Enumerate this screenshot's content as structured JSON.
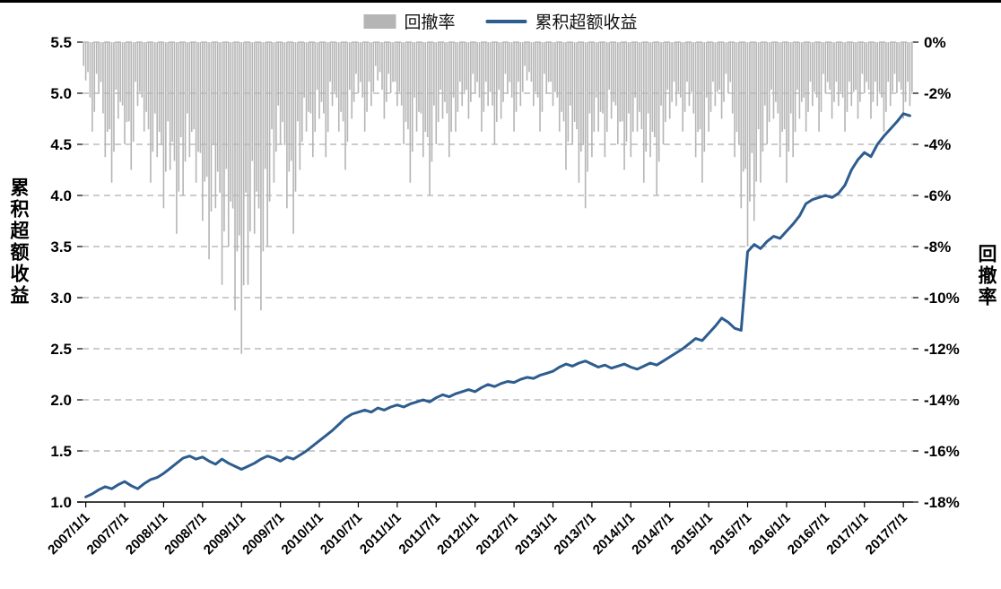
{
  "figure": {
    "background_color": "#ffffff",
    "top_border_color": "#000000",
    "grid_style": "dashed-horizontal",
    "legend_position": "top-center"
  },
  "chart_data": {
    "type": "combo",
    "x_start_month": "2007/1",
    "x_tick_labels": [
      "2007/1/1",
      "2007/7/1",
      "2008/1/1",
      "2008/7/1",
      "2009/1/1",
      "2009/7/1",
      "2010/1/1",
      "2010/7/1",
      "2011/1/1",
      "2011/7/1",
      "2012/1/1",
      "2012/7/1",
      "2013/1/1",
      "2013/7/1",
      "2014/1/1",
      "2014/7/1",
      "2015/1/1",
      "2015/7/1",
      "2016/1/1",
      "2016/7/1",
      "2017/1/1",
      "2017/7/1"
    ],
    "left_axis": {
      "title": "累积超额收益",
      "min": 1.0,
      "max": 5.5,
      "ticks": [
        "5.5",
        "5.0",
        "4.5",
        "4.0",
        "3.5",
        "3.0",
        "2.5",
        "2.0",
        "1.5",
        "1.0"
      ]
    },
    "right_axis": {
      "title": "回撤率",
      "min": -18,
      "max": 0,
      "ticks": [
        "0%",
        "-2%",
        "-4%",
        "-6%",
        "-8%",
        "-10%",
        "-12%",
        "-14%",
        "-16%",
        "-18%"
      ]
    },
    "series": [
      {
        "name": "回撤率",
        "type": "bar",
        "axis": "right",
        "unit": "%",
        "color": "#b5b5b5",
        "values": [
          -1.5,
          -3.5,
          -2,
          -4.5,
          -5.5,
          -3,
          -4,
          -5,
          -2.5,
          -3.5,
          -5.5,
          -4.5,
          -6.5,
          -5,
          -7.5,
          -6,
          -4.5,
          -5.5,
          -7,
          -8.5,
          -6.5,
          -9.5,
          -8,
          -10.5,
          -12.2,
          -9.5,
          -7.5,
          -10.5,
          -8,
          -5.5,
          -4,
          -6.5,
          -7.5,
          -5,
          -3.5,
          -4.5,
          -3,
          -4.5,
          -2.5,
          -3.5,
          -5,
          -3,
          -2,
          -3.5,
          -2.5,
          -1.5,
          -3,
          -2,
          -2.5,
          -4,
          -5.5,
          -3.5,
          -4.5,
          -6,
          -4,
          -3,
          -4.5,
          -3.5,
          -2.5,
          -3,
          -2,
          -3.5,
          -2.5,
          -4,
          -3,
          -2,
          -3.5,
          -2.5,
          -1.5,
          -2.5,
          -3.5,
          -2,
          -2.5,
          -3.5,
          -5,
          -4,
          -5.5,
          -6.5,
          -4.5,
          -3.5,
          -4.5,
          -3,
          -4,
          -5,
          -4.5,
          -3.5,
          -5.5,
          -4.5,
          -6,
          -4,
          -3,
          -2.5,
          -3.5,
          -2.5,
          -4.5,
          -5.5,
          -3.5,
          -2.5,
          -3,
          -2,
          -4.5,
          -6.5,
          -8,
          -7,
          -5.5,
          -4,
          -3,
          -4.5,
          -5.5,
          -4.5,
          -3,
          -3.5,
          -2.5,
          -3.5,
          -2,
          -3,
          -2.5,
          -3.5,
          -2.5,
          -3,
          -2,
          -3,
          -2.5,
          -3.5,
          -2.5,
          -2,
          -3,
          -2.5
        ]
      },
      {
        "name": "累积超额收益",
        "type": "line",
        "axis": "left",
        "color": "#2d5c8e",
        "values": [
          1.05,
          1.08,
          1.12,
          1.15,
          1.13,
          1.17,
          1.2,
          1.16,
          1.13,
          1.18,
          1.22,
          1.24,
          1.28,
          1.33,
          1.38,
          1.43,
          1.45,
          1.42,
          1.44,
          1.4,
          1.37,
          1.42,
          1.38,
          1.35,
          1.32,
          1.35,
          1.38,
          1.42,
          1.45,
          1.43,
          1.4,
          1.44,
          1.42,
          1.46,
          1.5,
          1.55,
          1.6,
          1.65,
          1.7,
          1.76,
          1.82,
          1.86,
          1.88,
          1.9,
          1.88,
          1.92,
          1.9,
          1.93,
          1.95,
          1.93,
          1.96,
          1.98,
          2.0,
          1.98,
          2.02,
          2.05,
          2.03,
          2.06,
          2.08,
          2.1,
          2.08,
          2.12,
          2.15,
          2.13,
          2.16,
          2.18,
          2.17,
          2.2,
          2.22,
          2.21,
          2.24,
          2.26,
          2.28,
          2.32,
          2.35,
          2.33,
          2.36,
          2.38,
          2.35,
          2.32,
          2.34,
          2.31,
          2.33,
          2.35,
          2.32,
          2.3,
          2.33,
          2.36,
          2.34,
          2.38,
          2.42,
          2.46,
          2.5,
          2.55,
          2.6,
          2.58,
          2.65,
          2.72,
          2.8,
          2.76,
          2.7,
          2.68,
          3.45,
          3.52,
          3.48,
          3.55,
          3.6,
          3.58,
          3.65,
          3.72,
          3.8,
          3.92,
          3.96,
          3.98,
          4.0,
          3.98,
          4.02,
          4.1,
          4.25,
          4.35,
          4.42,
          4.38,
          4.5,
          4.58,
          4.65,
          4.72,
          4.8,
          4.78
        ]
      }
    ]
  }
}
